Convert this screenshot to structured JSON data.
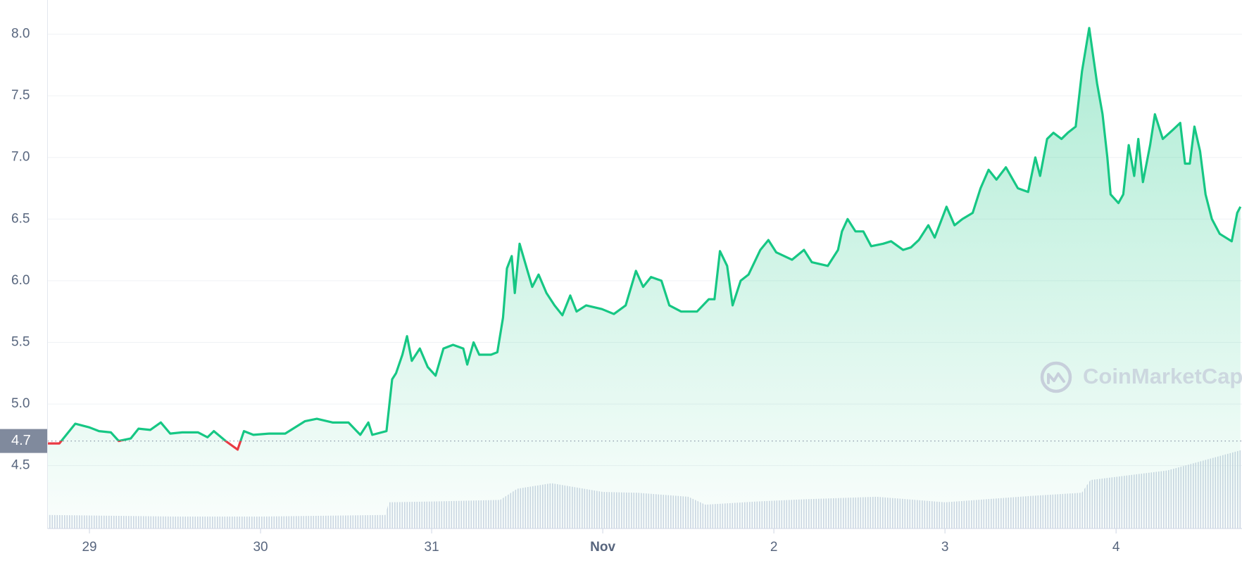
{
  "chart_data": {
    "type": "line",
    "color": "#16c784",
    "down_color": "#ea3943",
    "grid": true,
    "watermark": "CoinMarketCap",
    "reference": {
      "value": 4.7,
      "label": "4.7"
    },
    "xlim": [
      -0.245,
      6.736
    ],
    "xticks": [
      {
        "value": 0,
        "label": "29"
      },
      {
        "value": 1,
        "label": "30"
      },
      {
        "value": 2,
        "label": "31"
      },
      {
        "value": 3,
        "label": "Nov"
      },
      {
        "value": 4,
        "label": "2"
      },
      {
        "value": 5,
        "label": "3"
      },
      {
        "value": 6,
        "label": "4"
      }
    ],
    "ylim": [
      3.99,
      8.277
    ],
    "yticks": [
      {
        "value": 4.5,
        "label": "4.5"
      },
      {
        "value": 5,
        "label": "5.0"
      },
      {
        "value": 5.5,
        "label": "5.5"
      },
      {
        "value": 6,
        "label": "6.0"
      },
      {
        "value": 6.5,
        "label": "6.5"
      },
      {
        "value": 7,
        "label": "7.0"
      },
      {
        "value": 7.5,
        "label": "7.5"
      },
      {
        "value": 8,
        "label": "8.0"
      }
    ],
    "y2lim": [
      0,
      665
    ],
    "x": [
      -0.245,
      -0.176,
      -0.083,
      0,
      0.056,
      0.125,
      0.171,
      0.241,
      0.287,
      0.356,
      0.417,
      0.472,
      0.542,
      0.634,
      0.69,
      0.727,
      0.796,
      0.866,
      0.903,
      0.958,
      1.051,
      1.144,
      1.259,
      1.329,
      1.421,
      1.514,
      1.583,
      1.63,
      1.653,
      1.736,
      1.769,
      1.792,
      1.829,
      1.856,
      1.884,
      1.931,
      1.977,
      2.023,
      2.069,
      2.125,
      2.185,
      2.208,
      2.245,
      2.278,
      2.347,
      2.384,
      2.417,
      2.44,
      2.468,
      2.486,
      2.514,
      2.556,
      2.588,
      2.625,
      2.671,
      2.718,
      2.764,
      2.81,
      2.847,
      2.903,
      2.995,
      3.065,
      3.134,
      3.194,
      3.236,
      3.282,
      3.343,
      3.389,
      3.458,
      3.551,
      3.62,
      3.653,
      3.685,
      3.727,
      3.759,
      3.806,
      3.852,
      3.921,
      3.968,
      4.014,
      4.106,
      4.176,
      4.222,
      4.315,
      4.375,
      4.398,
      4.431,
      4.477,
      4.523,
      4.569,
      4.639,
      4.685,
      4.755,
      4.801,
      4.847,
      4.903,
      4.94,
      5.009,
      5.056,
      5.102,
      5.162,
      5.208,
      5.255,
      5.301,
      5.356,
      5.426,
      5.486,
      5.528,
      5.556,
      5.597,
      5.634,
      5.681,
      5.718,
      5.764,
      5.801,
      5.843,
      5.889,
      5.921,
      5.949,
      5.968,
      6.014,
      6.042,
      6.074,
      6.106,
      6.13,
      6.157,
      6.199,
      6.227,
      6.273,
      6.329,
      6.375,
      6.403,
      6.431,
      6.458,
      6.491,
      6.523,
      6.56,
      6.606,
      6.676,
      6.708,
      6.727
    ],
    "series": [
      {
        "values": [
          4.68,
          4.68,
          4.84,
          4.81,
          4.78,
          4.77,
          4.7,
          4.72,
          4.8,
          4.79,
          4.85,
          4.76,
          4.77,
          4.77,
          4.73,
          4.78,
          4.7,
          4.63,
          4.78,
          4.75,
          4.76,
          4.76,
          4.86,
          4.88,
          4.85,
          4.85,
          4.75,
          4.85,
          4.75,
          4.78,
          5.2,
          5.25,
          5.4,
          5.55,
          5.35,
          5.45,
          5.3,
          5.23,
          5.45,
          5.48,
          5.45,
          5.32,
          5.5,
          5.4,
          5.4,
          5.42,
          5.7,
          6.1,
          6.2,
          5.9,
          6.3,
          6.1,
          5.95,
          6.05,
          5.9,
          5.8,
          5.72,
          5.88,
          5.75,
          5.8,
          5.77,
          5.73,
          5.8,
          6.08,
          5.95,
          6.03,
          6.0,
          5.8,
          5.75,
          5.75,
          5.85,
          5.85,
          6.24,
          6.12,
          5.8,
          6.0,
          6.05,
          6.25,
          6.33,
          6.23,
          6.17,
          6.25,
          6.15,
          6.12,
          6.25,
          6.4,
          6.5,
          6.4,
          6.4,
          6.28,
          6.3,
          6.32,
          6.25,
          6.27,
          6.33,
          6.45,
          6.35,
          6.6,
          6.45,
          6.5,
          6.55,
          6.75,
          6.9,
          6.82,
          6.92,
          6.75,
          6.72,
          7.0,
          6.85,
          7.15,
          7.2,
          7.15,
          7.2,
          7.25,
          7.7,
          8.05,
          7.6,
          7.35,
          7.0,
          6.7,
          6.63,
          6.7,
          7.1,
          6.85,
          7.15,
          6.8,
          7.1,
          7.35,
          7.15,
          7.22,
          7.28,
          6.95,
          6.95,
          7.25,
          7.05,
          6.7,
          6.5,
          6.38,
          6.32,
          6.55,
          6.6
        ]
      },
      {
        "axis": "y2",
        "color": "#cfd6e4",
        "x": [
          -0.245,
          0.5,
          1.0,
          1.73,
          1.75,
          2.0,
          2.4,
          2.5,
          2.7,
          3.0,
          3.2,
          3.5,
          3.6,
          3.9,
          4.2,
          4.6,
          5.0,
          5.5,
          5.8,
          5.85,
          6.3,
          6.736
        ],
        "values": [
          17,
          15,
          15,
          17,
          33,
          34,
          36,
          50,
          57,
          46,
          45,
          40,
          30,
          34,
          37,
          40,
          33,
          41,
          45,
          61,
          73,
          99
        ]
      }
    ]
  }
}
